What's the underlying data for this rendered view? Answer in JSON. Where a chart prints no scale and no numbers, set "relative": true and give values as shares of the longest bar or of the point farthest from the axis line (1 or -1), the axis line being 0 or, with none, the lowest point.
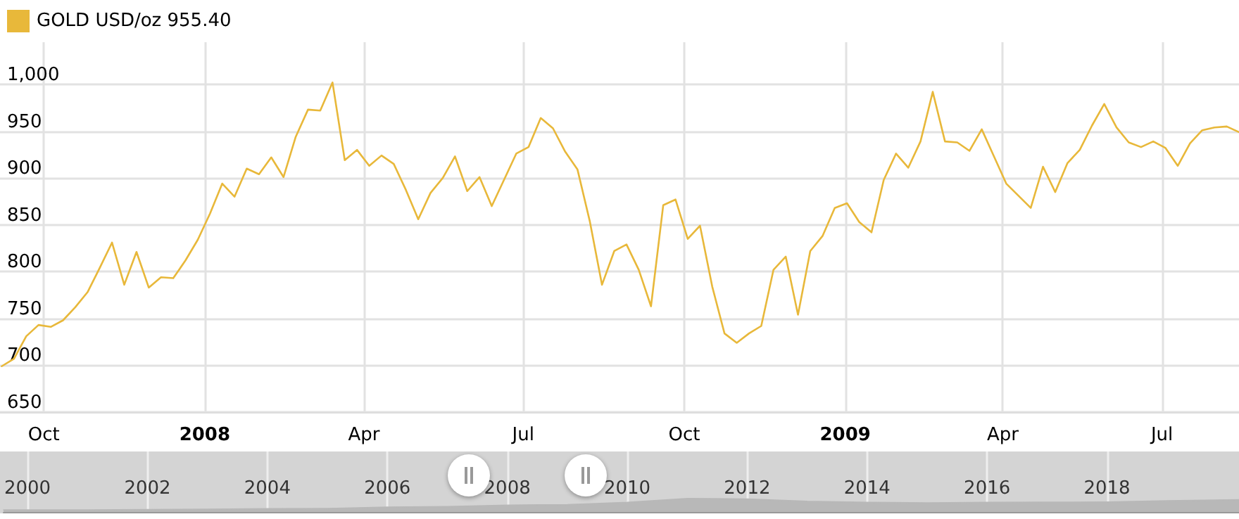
{
  "chart_data": [
    {
      "type": "line",
      "legend": "top left",
      "grid": true,
      "marker": "none",
      "line_style": "solid",
      "xlim": [
        "2007-09-06",
        "2009-08-14"
      ],
      "xticks": [
        {
          "value": "2007-10-01",
          "label": "Oct"
        },
        {
          "value": "2008-01-01",
          "label": "2008"
        },
        {
          "value": "2008-04-01",
          "label": "Apr"
        },
        {
          "value": "2008-07-01",
          "label": "Jul"
        },
        {
          "value": "2008-10-01",
          "label": "Oct"
        },
        {
          "value": "2009-01-01",
          "label": "2009"
        },
        {
          "value": "2009-04-01",
          "label": "Apr"
        },
        {
          "value": "2009-07-01",
          "label": "Jul"
        }
      ],
      "ylim": [
        650,
        1045
      ],
      "yticks": [
        650,
        700,
        750,
        800,
        850,
        900,
        950,
        {
          "value": 1000,
          "label": "1,000"
        }
      ],
      "x": [
        "2007-09-07",
        "2007-09-14",
        "2007-09-21",
        "2007-09-28",
        "2007-10-05",
        "2007-10-12",
        "2007-10-19",
        "2007-10-26",
        "2007-11-02",
        "2007-11-09",
        "2007-11-16",
        "2007-11-23",
        "2007-11-30",
        "2007-12-07",
        "2007-12-14",
        "2007-12-21",
        "2007-12-28",
        "2008-01-04",
        "2008-01-11",
        "2008-01-18",
        "2008-01-25",
        "2008-02-01",
        "2008-02-08",
        "2008-02-15",
        "2008-02-22",
        "2008-02-29",
        "2008-03-07",
        "2008-03-14",
        "2008-03-21",
        "2008-03-28",
        "2008-04-04",
        "2008-04-11",
        "2008-04-18",
        "2008-04-25",
        "2008-05-02",
        "2008-05-09",
        "2008-05-16",
        "2008-05-23",
        "2008-05-30",
        "2008-06-06",
        "2008-06-13",
        "2008-06-20",
        "2008-06-27",
        "2008-07-04",
        "2008-07-11",
        "2008-07-18",
        "2008-07-25",
        "2008-08-01",
        "2008-08-08",
        "2008-08-15",
        "2008-08-22",
        "2008-08-29",
        "2008-09-05",
        "2008-09-12",
        "2008-09-19",
        "2008-09-26",
        "2008-10-03",
        "2008-10-10",
        "2008-10-17",
        "2008-10-24",
        "2008-10-31",
        "2008-11-07",
        "2008-11-14",
        "2008-11-21",
        "2008-11-28",
        "2008-12-05",
        "2008-12-12",
        "2008-12-19",
        "2008-12-26",
        "2009-01-02",
        "2009-01-09",
        "2009-01-16",
        "2009-01-23",
        "2009-01-30",
        "2009-02-06",
        "2009-02-13",
        "2009-02-20",
        "2009-02-27",
        "2009-03-06",
        "2009-03-13",
        "2009-03-20",
        "2009-03-27",
        "2009-04-03",
        "2009-04-10",
        "2009-04-17",
        "2009-04-24",
        "2009-05-01",
        "2009-05-08",
        "2009-05-15",
        "2009-05-22",
        "2009-05-29",
        "2009-06-05",
        "2009-06-12",
        "2009-06-19",
        "2009-06-26",
        "2009-07-03",
        "2009-07-10",
        "2009-07-17",
        "2009-07-24",
        "2009-07-31",
        "2009-08-07",
        "2009-08-14"
      ],
      "series": [
        {
          "name": "GOLD USD/oz 955.40",
          "color": "#e8b83a",
          "values": [
            699,
            707,
            731,
            743,
            741,
            748,
            762,
            778,
            804,
            831,
            786,
            821,
            783,
            794,
            793,
            812,
            834,
            862,
            894,
            880,
            910,
            904,
            922,
            901,
            944,
            973,
            972,
            1002,
            919,
            930,
            913,
            924,
            915,
            887,
            856,
            884,
            900,
            923,
            886,
            901,
            870,
            898,
            926,
            933,
            964,
            953,
            928,
            909,
            854,
            786,
            822,
            829,
            802,
            763,
            871,
            877,
            835,
            849,
            784,
            734,
            724,
            734,
            742,
            802,
            816,
            754,
            822,
            838,
            868,
            873,
            853,
            842,
            898,
            926,
            911,
            939,
            992,
            939,
            938,
            929,
            952,
            923,
            894,
            881,
            868,
            912,
            885,
            916,
            930,
            956,
            979,
            954,
            938,
            933,
            939,
            932,
            913,
            937,
            951,
            954,
            955,
            949
          ]
        }
      ]
    },
    {
      "type": "area",
      "relative": true,
      "grid": "x",
      "xlim": [
        1999.6,
        2020.2
      ],
      "xticks": [
        2000,
        2002,
        2004,
        2006,
        2008,
        2010,
        2012,
        2014,
        2016,
        2018
      ],
      "x": [
        1999.6,
        2001,
        2002,
        2003,
        2004,
        2005,
        2006,
        2007,
        2008,
        2009,
        2010,
        2011,
        2012,
        2013,
        2014,
        2015,
        2016,
        2017,
        2018,
        2019,
        2020.2
      ],
      "series": [
        {
          "color": "#b8b8b8",
          "values": [
            0.16,
            0.16,
            0.18,
            0.21,
            0.24,
            0.26,
            0.36,
            0.4,
            0.51,
            0.55,
            0.72,
            1,
            0.97,
            0.79,
            0.72,
            0.68,
            0.72,
            0.73,
            0.74,
            0.84,
            0.91
          ]
        }
      ]
    }
  ]
}
